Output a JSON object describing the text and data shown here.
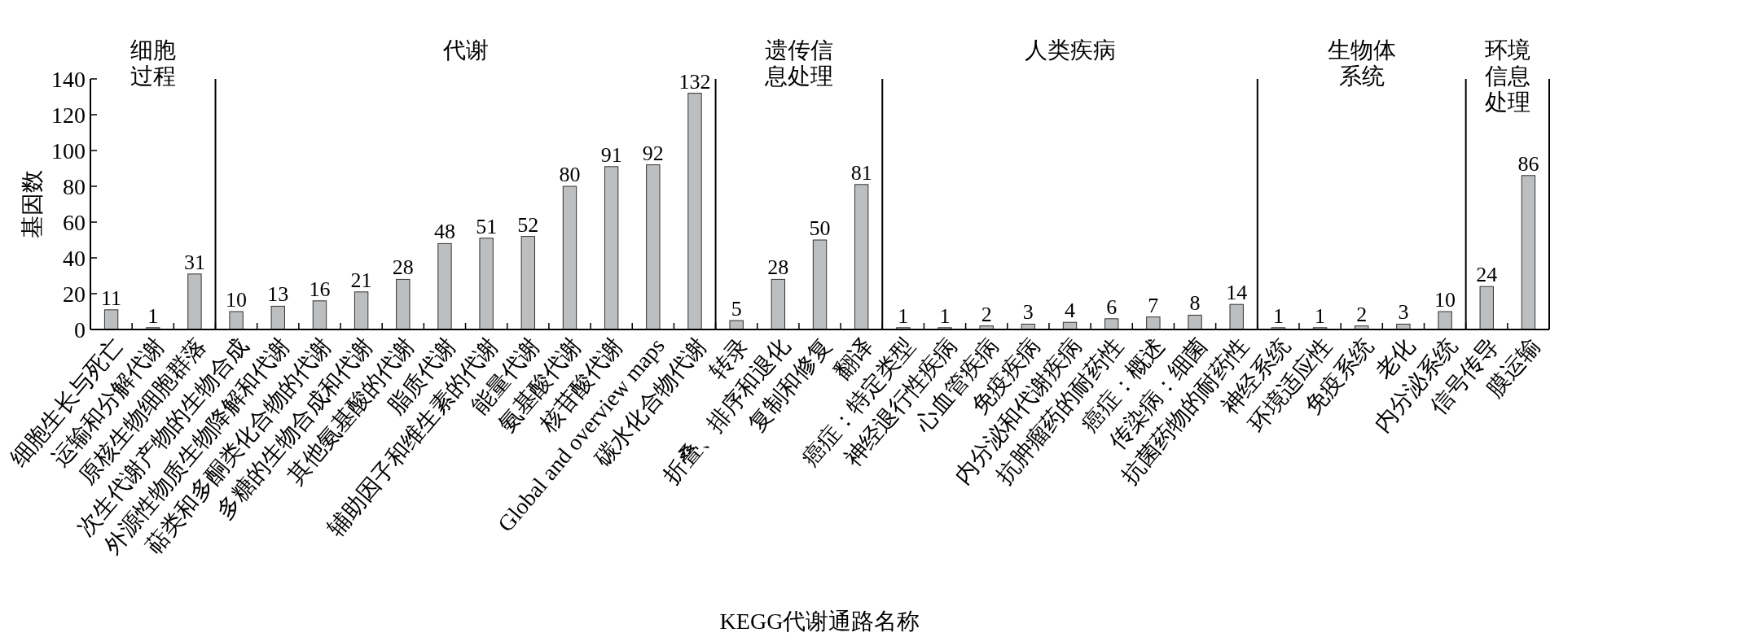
{
  "chart_data": {
    "type": "bar",
    "xlabel": "KEGG代谢通路名称",
    "ylabel": "基因数",
    "categories": [
      "细胞生长与死亡",
      "运输和分解代谢",
      "原核生物细胞群落",
      "次生代谢产物的生物合成",
      "外源性物质生物降解和代谢",
      "萜类和多酮类化合物的代谢",
      "多糖的生物合成和代谢",
      "其他氨基酸的代谢",
      "脂质代谢",
      "辅助因子和维生素的代谢",
      "能量代谢",
      "氨基酸代谢",
      "核苷酸代谢",
      "Global and overview maps",
      "碳水化合物代谢",
      "转录",
      "折叠、排序和退化",
      "复制和修复",
      "翻译",
      "癌症：特定类型",
      "神经退行性疾病",
      "心血管疾病",
      "免疫疾病",
      "内分泌和代谢疾病",
      "抗肿瘤药的耐药性",
      "癌症：概述",
      "传染病：细菌",
      "抗菌药物的耐药性",
      "神经系统",
      "环境适应性",
      "免疫系统",
      "老化",
      "内分泌系统",
      "信号传导",
      "膜运输"
    ],
    "values": [
      11,
      1,
      31,
      10,
      13,
      16,
      21,
      28,
      48,
      51,
      52,
      80,
      91,
      92,
      132,
      5,
      28,
      50,
      81,
      1,
      1,
      2,
      3,
      4,
      6,
      7,
      8,
      14,
      1,
      1,
      2,
      3,
      10,
      24,
      86
    ],
    "color": "#bcbec0",
    "ylim": [
      0,
      140
    ],
    "yticks": [
      0,
      20,
      40,
      60,
      80,
      100,
      120,
      140
    ],
    "data_labels": true,
    "annotations": [
      "细胞过程",
      "代谢",
      "遗传信息处理",
      "人类疾病",
      "生物体系统",
      "环境信息处理"
    ]
  }
}
